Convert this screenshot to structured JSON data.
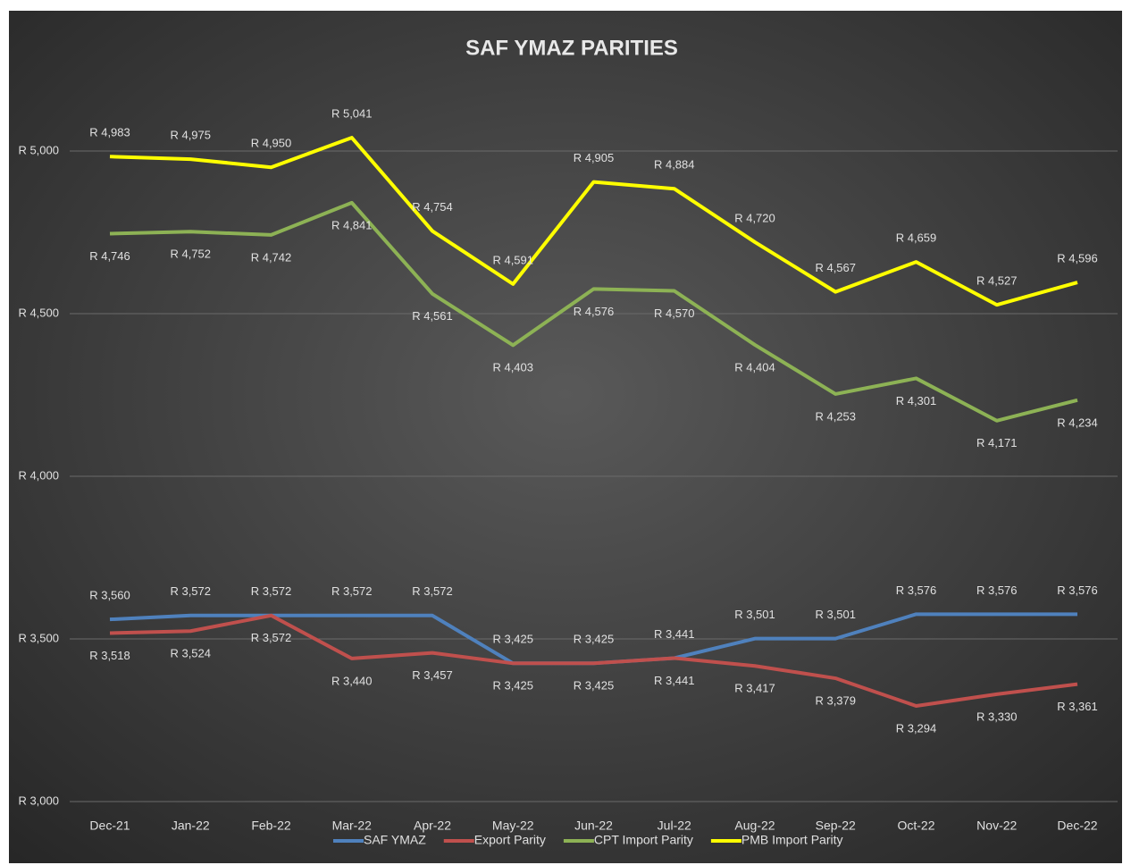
{
  "chart_data": {
    "type": "line",
    "title": "SAF YMAZ PARITIES",
    "categories": [
      "Dec-21",
      "Jan-22",
      "Feb-22",
      "Mar-22",
      "Apr-22",
      "May-22",
      "Jun-22",
      "Jul-22",
      "Aug-22",
      "Sep-22",
      "Oct-22",
      "Nov-22",
      "Dec-22"
    ],
    "ylim": [
      3000,
      5200
    ],
    "yticks": [
      {
        "value": 3000,
        "label": "R 3,000"
      },
      {
        "value": 3500,
        "label": "R 3,500"
      },
      {
        "value": 4000,
        "label": "R 4,000"
      },
      {
        "value": 4500,
        "label": "R 4,500"
      },
      {
        "value": 5000,
        "label": "R 5,000"
      }
    ],
    "grid": true,
    "legend": "bottom",
    "series": [
      {
        "name": "SAF YMAZ",
        "color": "#4f81bd",
        "values": [
          3560,
          3572,
          3572,
          3572,
          3572,
          3425,
          3425,
          3441,
          3501,
          3501,
          3576,
          3576,
          3576
        ],
        "value_labels": [
          "R 3,560",
          "R 3,572",
          "R 3,572",
          "R 3,572",
          "R 3,572",
          "R 3,425",
          "R 3,425",
          "R 3,441",
          "R 3,501",
          "R 3,501",
          "R 3,576",
          "R 3,576",
          "R 3,576"
        ]
      },
      {
        "name": "Export Parity",
        "color": "#c0504d",
        "values": [
          3518,
          3524,
          3572,
          3440,
          3457,
          3425,
          3425,
          3441,
          3417,
          3379,
          3294,
          3330,
          3361
        ],
        "value_labels": [
          "R 3,518",
          "R 3,524",
          "R 3,572",
          "R 3,440",
          "R 3,457",
          "R 3,425",
          "R 3,425",
          "R 3,441",
          "R 3,417",
          "R 3,379",
          "R 3,294",
          "R 3,330",
          "R 3,361"
        ]
      },
      {
        "name": "CPT Import Parity",
        "color": "#8db255",
        "values": [
          4746,
          4752,
          4742,
          4841,
          4561,
          4403,
          4576,
          4570,
          4404,
          4253,
          4301,
          4171,
          4234
        ],
        "value_labels": [
          "R 4,746",
          "R 4,752",
          "R 4,742",
          "R 4,841",
          "R 4,561",
          "R 4,403",
          "R 4,576",
          "R 4,570",
          "R 4,404",
          "R 4,253",
          "R 4,301",
          "R 4,171",
          "R 4,234"
        ]
      },
      {
        "name": "PMB Import Parity",
        "color": "#ffff00",
        "values": [
          4983,
          4975,
          4950,
          5041,
          4754,
          4591,
          4905,
          4884,
          4720,
          4567,
          4659,
          4527,
          4596
        ],
        "value_labels": [
          "R 4,983",
          "R 4,975",
          "R 4,950",
          "R 5,041",
          "R 4,754",
          "R 4,591",
          "R 4,905",
          "R 4,884",
          "R 4,720",
          "R 4,567",
          "R 4,659",
          "R 4,527",
          "R 4,596"
        ]
      }
    ]
  }
}
